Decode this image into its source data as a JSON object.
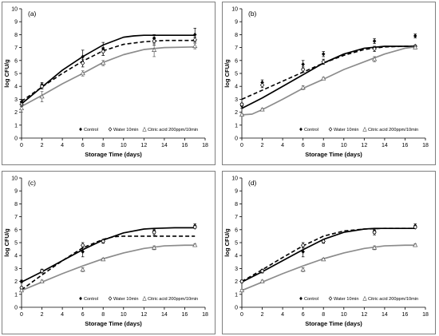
{
  "chart_data": [
    {
      "type": "scatter",
      "panel_label": "(a)",
      "xlabel": "Storage Time (days)",
      "ylabel": "log CFU/g",
      "xlim": [
        0,
        18
      ],
      "ylim": [
        0,
        10
      ],
      "xticks": [
        0,
        2,
        4,
        6,
        8,
        10,
        12,
        14,
        16,
        18
      ],
      "yticks": [
        0,
        1,
        2,
        3,
        4,
        5,
        6,
        7,
        8,
        9,
        10
      ],
      "grid": false,
      "legend_position": "bottom-right",
      "series": [
        {
          "name": "Control",
          "marker": "filled-diamond",
          "line": "solid-black",
          "x": [
            0,
            2,
            6,
            8,
            13,
            17
          ],
          "y": [
            2.8,
            4.1,
            6.3,
            6.9,
            7.7,
            8.0
          ],
          "err": [
            0.2,
            0.2,
            0.5,
            0.5,
            0.3,
            0.5
          ],
          "fit_x": [
            0,
            2,
            4,
            6,
            8,
            10,
            11,
            12,
            13,
            15,
            17
          ],
          "fit_y": [
            2.65,
            3.95,
            5.25,
            6.3,
            7.2,
            7.8,
            7.9,
            7.95,
            7.95,
            7.95,
            7.95
          ]
        },
        {
          "name": "Water 10min",
          "marker": "open-diamond",
          "line": "dashed-black",
          "x": [
            0,
            2,
            6,
            8,
            13,
            17
          ],
          "y": [
            2.6,
            4.0,
            5.8,
            6.7,
            7.5,
            7.6
          ],
          "err": [
            0.15,
            0.2,
            0.3,
            0.3,
            0.3,
            0.2
          ],
          "fit_x": [
            0,
            2,
            4,
            6,
            8,
            10,
            12,
            14,
            17
          ],
          "fit_y": [
            2.85,
            3.95,
            5.0,
            5.95,
            6.75,
            7.25,
            7.45,
            7.55,
            7.55
          ]
        },
        {
          "name": "Citric acid 200ppm/10min",
          "marker": "open-triangle",
          "line": "solid-gray",
          "x": [
            0,
            2,
            6,
            8,
            13,
            17
          ],
          "y": [
            2.3,
            3.2,
            5.0,
            5.8,
            6.8,
            7.1
          ],
          "err": [
            0.3,
            0.4,
            0.2,
            0.2,
            0.5,
            0.2
          ],
          "fit_x": [
            0,
            2,
            4,
            6,
            8,
            10,
            12,
            14,
            17
          ],
          "fit_y": [
            2.45,
            3.3,
            4.2,
            5.0,
            5.85,
            6.45,
            6.85,
            7.0,
            7.05
          ]
        }
      ]
    },
    {
      "type": "scatter",
      "panel_label": "(b)",
      "xlabel": "Storage Time (days)",
      "ylabel": "log CFU/g",
      "xlim": [
        0,
        18
      ],
      "ylim": [
        0,
        10
      ],
      "xticks": [
        0,
        2,
        4,
        6,
        8,
        10,
        12,
        14,
        16,
        18
      ],
      "yticks": [
        0,
        1,
        2,
        3,
        4,
        5,
        6,
        7,
        8,
        9,
        10
      ],
      "grid": false,
      "legend_position": "bottom-right",
      "series": [
        {
          "name": "Control",
          "marker": "filled-diamond",
          "line": "solid-black",
          "x": [
            0,
            2,
            6,
            8,
            13,
            17
          ],
          "y": [
            2.5,
            4.3,
            5.7,
            6.5,
            7.5,
            7.9
          ],
          "err": [
            0.2,
            0.2,
            0.3,
            0.2,
            0.2,
            0.15
          ],
          "fit_x": [
            0,
            2,
            4,
            6,
            8,
            10,
            12,
            14,
            16,
            17
          ],
          "fit_y": [
            2.3,
            3.1,
            4.0,
            4.9,
            5.8,
            6.5,
            6.95,
            7.1,
            7.1,
            7.1
          ]
        },
        {
          "name": "Water 10min",
          "marker": "open-diamond",
          "line": "dashed-black",
          "x": [
            0,
            2,
            6,
            8,
            13,
            17
          ],
          "y": [
            2.6,
            4.1,
            5.3,
            5.9,
            6.9,
            7.1
          ],
          "err": [
            0.1,
            0.2,
            0.2,
            0.2,
            0.2,
            0.1
          ],
          "fit_x": [
            0,
            2,
            4,
            6,
            8,
            10,
            12,
            14,
            16,
            17
          ],
          "fit_y": [
            3.0,
            3.7,
            4.4,
            5.1,
            5.8,
            6.4,
            6.85,
            7.05,
            7.1,
            7.1
          ]
        },
        {
          "name": "Citric acid 200ppm/10min",
          "marker": "open-triangle",
          "line": "solid-gray",
          "x": [
            0,
            2,
            6,
            8,
            13,
            17
          ],
          "y": [
            1.8,
            2.2,
            3.9,
            4.6,
            6.1,
            7.0
          ],
          "err": [
            0.1,
            0.1,
            0.15,
            0.1,
            0.2,
            0.1
          ],
          "fit_x": [
            0,
            1,
            2,
            4,
            6,
            8,
            10,
            12,
            14,
            16,
            17
          ],
          "fit_y": [
            1.8,
            1.85,
            2.2,
            3.0,
            3.85,
            4.55,
            5.3,
            5.9,
            6.5,
            6.95,
            7.05
          ]
        }
      ]
    },
    {
      "type": "scatter",
      "panel_label": "(c)",
      "xlabel": "Storage Time (days)",
      "ylabel": "log CFU/g",
      "xlim": [
        0,
        18
      ],
      "ylim": [
        0,
        10
      ],
      "xticks": [
        0,
        2,
        4,
        6,
        8,
        10,
        12,
        14,
        16,
        18
      ],
      "yticks": [
        0,
        1,
        2,
        3,
        4,
        5,
        6,
        7,
        8,
        9,
        10
      ],
      "grid": false,
      "legend_position": "bottom-right",
      "series": [
        {
          "name": "Control",
          "marker": "filled-diamond",
          "line": "solid-black",
          "x": [
            0,
            2,
            6,
            8,
            13,
            17
          ],
          "y": [
            2.0,
            2.8,
            4.3,
            5.1,
            5.9,
            6.3
          ],
          "err": [
            0.1,
            0.15,
            0.4,
            0.15,
            0.2,
            0.15
          ],
          "fit_x": [
            0,
            2,
            4,
            6,
            8,
            10,
            12,
            13,
            15,
            17
          ],
          "fit_y": [
            1.95,
            2.75,
            3.6,
            4.45,
            5.2,
            5.75,
            6.05,
            6.1,
            6.15,
            6.15
          ]
        },
        {
          "name": "Water 10min",
          "marker": "open-diamond",
          "line": "dashed-black",
          "x": [
            0,
            2,
            6,
            8,
            13,
            17
          ],
          "y": [
            1.5,
            2.8,
            4.8,
            5.1,
            5.8,
            6.2
          ],
          "err": [
            0.1,
            0.1,
            0.2,
            0.1,
            0.2,
            0.1
          ],
          "fit_x": [
            0,
            2,
            4,
            6,
            8,
            9,
            10,
            12,
            14,
            17
          ],
          "fit_y": [
            1.35,
            2.5,
            3.6,
            4.6,
            5.25,
            5.45,
            5.5,
            5.5,
            5.5,
            5.5
          ]
        },
        {
          "name": "Citric acid 200ppm/10min",
          "marker": "open-triangle",
          "line": "solid-gray",
          "x": [
            0,
            2,
            6,
            8,
            13,
            17
          ],
          "y": [
            1.3,
            2.0,
            2.9,
            3.7,
            4.6,
            4.8
          ],
          "err": [
            0.1,
            0.1,
            0.15,
            0.1,
            0.15,
            0.1
          ],
          "fit_x": [
            0,
            2,
            4,
            6,
            8,
            10,
            12,
            14,
            16,
            17
          ],
          "fit_y": [
            1.3,
            1.95,
            2.6,
            3.2,
            3.75,
            4.2,
            4.55,
            4.75,
            4.8,
            4.8
          ]
        }
      ]
    },
    {
      "type": "scatter",
      "panel_label": "(d)",
      "xlabel": "Storage Time (days)",
      "ylabel": "log CFU/g",
      "xlim": [
        0,
        18
      ],
      "ylim": [
        0,
        10
      ],
      "xticks": [
        0,
        2,
        4,
        6,
        8,
        10,
        12,
        14,
        16,
        18
      ],
      "yticks": [
        0,
        1,
        2,
        3,
        4,
        5,
        6,
        7,
        8,
        9,
        10
      ],
      "grid": false,
      "legend_position": "bottom-right",
      "series": [
        {
          "name": "Control",
          "marker": "filled-diamond",
          "line": "solid-black",
          "x": [
            0,
            2,
            6,
            8,
            13,
            17
          ],
          "y": [
            2.0,
            2.8,
            4.3,
            5.1,
            5.9,
            6.3
          ],
          "err": [
            0.1,
            0.15,
            0.4,
            0.15,
            0.2,
            0.15
          ],
          "fit_x": [
            0,
            2,
            4,
            6,
            8,
            10,
            12,
            13,
            15,
            17
          ],
          "fit_y": [
            1.95,
            2.75,
            3.6,
            4.45,
            5.25,
            5.8,
            6.05,
            6.1,
            6.1,
            6.1
          ]
        },
        {
          "name": "Water 10min",
          "marker": "open-diamond",
          "line": "dashed-black",
          "x": [
            0,
            2,
            6,
            8,
            13,
            17
          ],
          "y": [
            2.0,
            2.8,
            4.8,
            5.1,
            5.8,
            6.2
          ],
          "err": [
            0.1,
            0.1,
            0.2,
            0.1,
            0.2,
            0.1
          ],
          "fit_x": [
            0,
            2,
            4,
            6,
            8,
            10,
            12,
            14,
            17
          ],
          "fit_y": [
            2.0,
            2.9,
            3.85,
            4.75,
            5.5,
            5.9,
            6.05,
            6.1,
            6.1
          ]
        },
        {
          "name": "Citric acid 200ppm/10min",
          "marker": "open-triangle",
          "line": "solid-gray",
          "x": [
            0,
            2,
            6,
            8,
            13,
            17
          ],
          "y": [
            1.3,
            2.0,
            2.9,
            3.7,
            4.6,
            4.8
          ],
          "err": [
            0.1,
            0.1,
            0.15,
            0.1,
            0.15,
            0.1
          ],
          "fit_x": [
            0,
            2,
            4,
            6,
            8,
            10,
            12,
            14,
            16,
            17
          ],
          "fit_y": [
            1.3,
            1.95,
            2.6,
            3.2,
            3.75,
            4.2,
            4.55,
            4.75,
            4.8,
            4.8
          ]
        }
      ]
    }
  ],
  "colors": {
    "black_series": "#000000",
    "gray_series": "#8c8c8c",
    "axis": "#000000",
    "panel_border": "#7f7f7f"
  }
}
